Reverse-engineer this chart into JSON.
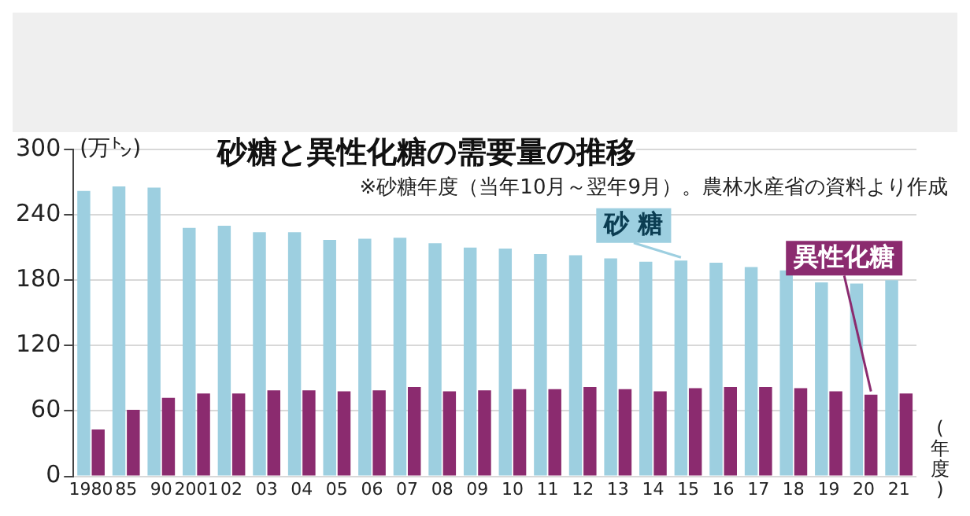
{
  "chart_data": {
    "type": "bar",
    "title": "砂糖と異性化糖の需要量の推移",
    "subtitle": "※砂糖年度（当年10月～翌年9月）。農林水産省の資料より作成",
    "ylabel": "(万㌧)",
    "xlabel": "(年度)",
    "categories": [
      "1980",
      "85",
      "90",
      "2001",
      "02",
      "03",
      "04",
      "05",
      "06",
      "07",
      "08",
      "09",
      "10",
      "11",
      "12",
      "13",
      "14",
      "15",
      "16",
      "17",
      "18",
      "19",
      "20",
      "21"
    ],
    "series": [
      {
        "name": "砂 糖",
        "color": "#9dcfe0",
        "values": [
          262,
          266,
          265,
          228,
          230,
          224,
          224,
          217,
          218,
          219,
          214,
          210,
          209,
          204,
          203,
          200,
          197,
          198,
          196,
          192,
          189,
          178,
          177,
          180
        ]
      },
      {
        "name": "異性化糖",
        "color": "#8b2b6f",
        "values": [
          43,
          61,
          72,
          76,
          76,
          79,
          79,
          78,
          79,
          82,
          78,
          79,
          80,
          80,
          82,
          80,
          78,
          81,
          82,
          82,
          81,
          78,
          75,
          76
        ]
      }
    ],
    "ylim": [
      0,
      300
    ],
    "yticks": [
      0,
      60,
      120,
      180,
      240,
      300
    ],
    "grid": "y",
    "legend": false
  }
}
